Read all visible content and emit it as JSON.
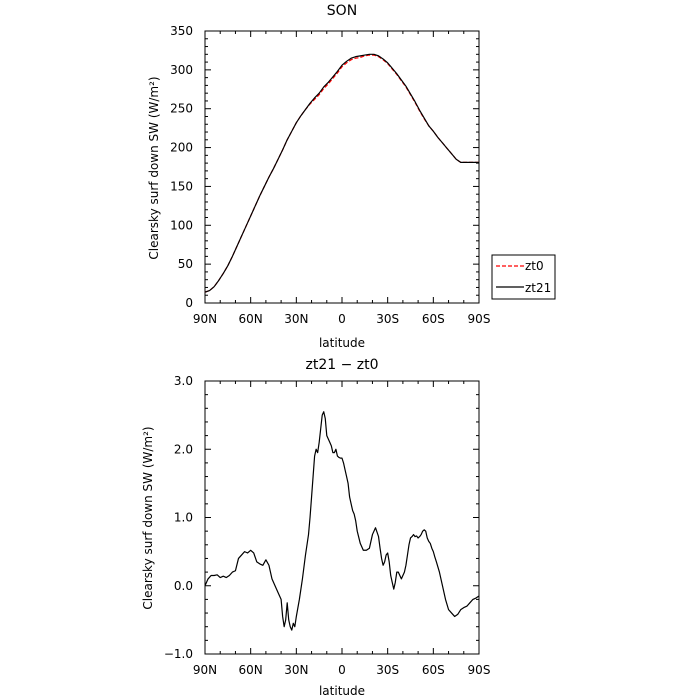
{
  "chart_data": [
    {
      "type": "line",
      "title": "SON",
      "xlabel": "latitude",
      "ylabel": "Clearsky surf down SW (W/m²)",
      "xlim": [
        90,
        -90
      ],
      "ylim": [
        0,
        350
      ],
      "xticks": [
        {
          "value": 90,
          "label": "90N"
        },
        {
          "value": 60,
          "label": "60N"
        },
        {
          "value": 30,
          "label": "30N"
        },
        {
          "value": 0,
          "label": "0"
        },
        {
          "value": -30,
          "label": "30S"
        },
        {
          "value": -60,
          "label": "60S"
        },
        {
          "value": -90,
          "label": "90S"
        }
      ],
      "yticks": [
        {
          "value": 0,
          "label": "0"
        },
        {
          "value": 50,
          "label": "50"
        },
        {
          "value": 100,
          "label": "100"
        },
        {
          "value": 150,
          "label": "150"
        },
        {
          "value": 200,
          "label": "200"
        },
        {
          "value": 250,
          "label": "250"
        },
        {
          "value": 300,
          "label": "300"
        },
        {
          "value": 350,
          "label": "350"
        }
      ],
      "legend": {
        "position": "right",
        "entries": [
          "zt0",
          "zt21"
        ]
      },
      "series": [
        {
          "name": "zt0",
          "color": "#ff0000",
          "dashed": true,
          "x": [
            90,
            87,
            84,
            81,
            78,
            75,
            72,
            69,
            66,
            63,
            60,
            57,
            54,
            51,
            48,
            45,
            42,
            39,
            36,
            33,
            30,
            27,
            24,
            21,
            18,
            15,
            12,
            9,
            6,
            3,
            0,
            -3,
            -6,
            -9,
            -12,
            -15,
            -18,
            -21,
            -24,
            -27,
            -30,
            -33,
            -36,
            -39,
            -42,
            -45,
            -48,
            -51,
            -54,
            -57,
            -60,
            -63,
            -66,
            -69,
            -72,
            -75,
            -78,
            -81,
            -84,
            -87,
            -90
          ],
          "y": [
            14,
            16,
            21,
            29,
            38,
            48,
            60,
            73,
            86,
            99,
            112,
            125,
            138,
            150,
            162,
            173,
            185,
            197,
            210,
            221,
            232,
            241,
            249,
            256,
            262,
            268,
            276,
            282,
            289,
            296,
            304,
            309,
            313,
            315,
            316,
            318,
            319,
            319,
            317,
            313,
            308,
            301,
            294,
            286,
            278,
            268,
            258,
            247,
            237,
            228,
            221,
            213,
            206,
            199,
            192,
            185,
            181,
            181,
            181,
            181,
            181
          ]
        },
        {
          "name": "zt21",
          "color": "#000000",
          "dashed": false,
          "x": [
            90,
            87,
            84,
            81,
            78,
            75,
            72,
            69,
            66,
            63,
            60,
            57,
            54,
            51,
            48,
            45,
            42,
            39,
            36,
            33,
            30,
            27,
            24,
            21,
            18,
            15,
            12,
            9,
            6,
            3,
            0,
            -3,
            -6,
            -9,
            -12,
            -15,
            -18,
            -21,
            -24,
            -27,
            -30,
            -33,
            -36,
            -39,
            -42,
            -45,
            -48,
            -51,
            -54,
            -57,
            -60,
            -63,
            -66,
            -69,
            -72,
            -75,
            -78,
            -81,
            -84,
            -87,
            -90
          ],
          "y": [
            14,
            16,
            21,
            29,
            38,
            48,
            60,
            73,
            86,
            99,
            112,
            125,
            138,
            150,
            162,
            173,
            185,
            197,
            210,
            221,
            232,
            241,
            249,
            257,
            264,
            270,
            278,
            284,
            291,
            298,
            306,
            311,
            315,
            317,
            318,
            319,
            320,
            320,
            318,
            314,
            309,
            302,
            295,
            287,
            279,
            269,
            259,
            248,
            238,
            228,
            221,
            213,
            206,
            199,
            192,
            185,
            181,
            181,
            181,
            181,
            181
          ]
        }
      ]
    },
    {
      "type": "line",
      "title": "zt21 − zt0",
      "xlabel": "latitude",
      "ylabel": "Clearsky surf down SW (W/m²)",
      "xlim": [
        90,
        -90
      ],
      "ylim": [
        -1.0,
        3.0
      ],
      "xticks": [
        {
          "value": 90,
          "label": "90N"
        },
        {
          "value": 60,
          "label": "60N"
        },
        {
          "value": 30,
          "label": "30N"
        },
        {
          "value": 0,
          "label": "0"
        },
        {
          "value": -30,
          "label": "30S"
        },
        {
          "value": -60,
          "label": "60S"
        },
        {
          "value": -90,
          "label": "90S"
        }
      ],
      "yticks": [
        {
          "value": -1.0,
          "label": "−1.0"
        },
        {
          "value": 0.0,
          "label": "0.0"
        },
        {
          "value": 1.0,
          "label": "1.0"
        },
        {
          "value": 2.0,
          "label": "2.0"
        },
        {
          "value": 3.0,
          "label": "3.0"
        }
      ],
      "series": [
        {
          "name": "zt21 − zt0",
          "color": "#000000",
          "dashed": false,
          "x": [
            90,
            88,
            86,
            84,
            82,
            80,
            78,
            76,
            74,
            72,
            70,
            68,
            66,
            64,
            62,
            60,
            58,
            56,
            54,
            52,
            50,
            48,
            46,
            44,
            42,
            40,
            39,
            38,
            37,
            36,
            35,
            34,
            33,
            32,
            31,
            30,
            28,
            26,
            24,
            22,
            21,
            20,
            19,
            18,
            17,
            16,
            15,
            14,
            13,
            12,
            11,
            10,
            9,
            8,
            7,
            6,
            5,
            4,
            3,
            2,
            1,
            0,
            -1,
            -2,
            -3,
            -4,
            -5,
            -6,
            -7,
            -8,
            -9,
            -10,
            -12,
            -14,
            -16,
            -18,
            -20,
            -22,
            -24,
            -25,
            -26,
            -27,
            -28,
            -29,
            -30,
            -31,
            -32,
            -33,
            -34,
            -35,
            -36,
            -37,
            -38,
            -39,
            -40,
            -41,
            -42,
            -43,
            -44,
            -45,
            -46,
            -47,
            -48,
            -49,
            -50,
            -51,
            -52,
            -53,
            -54,
            -55,
            -56,
            -57,
            -58,
            -59,
            -60,
            -61,
            -62,
            -64,
            -66,
            -68,
            -70,
            -72,
            -74,
            -76,
            -78,
            -80,
            -82,
            -84,
            -86,
            -88,
            -90
          ],
          "y": [
            0.0,
            0.1,
            0.15,
            0.15,
            0.16,
            0.12,
            0.14,
            0.12,
            0.15,
            0.2,
            0.22,
            0.4,
            0.45,
            0.5,
            0.48,
            0.52,
            0.48,
            0.35,
            0.32,
            0.3,
            0.38,
            0.3,
            0.1,
            0.0,
            -0.1,
            -0.2,
            -0.45,
            -0.6,
            -0.5,
            -0.25,
            -0.5,
            -0.6,
            -0.65,
            -0.55,
            -0.6,
            -0.45,
            -0.2,
            0.1,
            0.45,
            0.75,
            1.0,
            1.3,
            1.6,
            1.9,
            2.0,
            1.95,
            2.1,
            2.3,
            2.5,
            2.55,
            2.45,
            2.2,
            2.15,
            2.1,
            2.05,
            1.95,
            1.95,
            2.0,
            1.9,
            1.88,
            1.87,
            1.87,
            1.8,
            1.7,
            1.6,
            1.5,
            1.3,
            1.2,
            1.1,
            1.05,
            0.95,
            0.8,
            0.62,
            0.52,
            0.52,
            0.55,
            0.75,
            0.85,
            0.72,
            0.55,
            0.4,
            0.3,
            0.35,
            0.45,
            0.48,
            0.35,
            0.15,
            0.05,
            -0.05,
            0.05,
            0.2,
            0.2,
            0.15,
            0.1,
            0.15,
            0.2,
            0.3,
            0.45,
            0.6,
            0.7,
            0.72,
            0.75,
            0.72,
            0.73,
            0.7,
            0.72,
            0.75,
            0.8,
            0.82,
            0.8,
            0.7,
            0.65,
            0.62,
            0.55,
            0.5,
            0.42,
            0.35,
            0.2,
            0.0,
            -0.2,
            -0.35,
            -0.4,
            -0.45,
            -0.42,
            -0.35,
            -0.32,
            -0.3,
            -0.25,
            -0.2,
            -0.18,
            -0.15
          ]
        }
      ]
    }
  ]
}
